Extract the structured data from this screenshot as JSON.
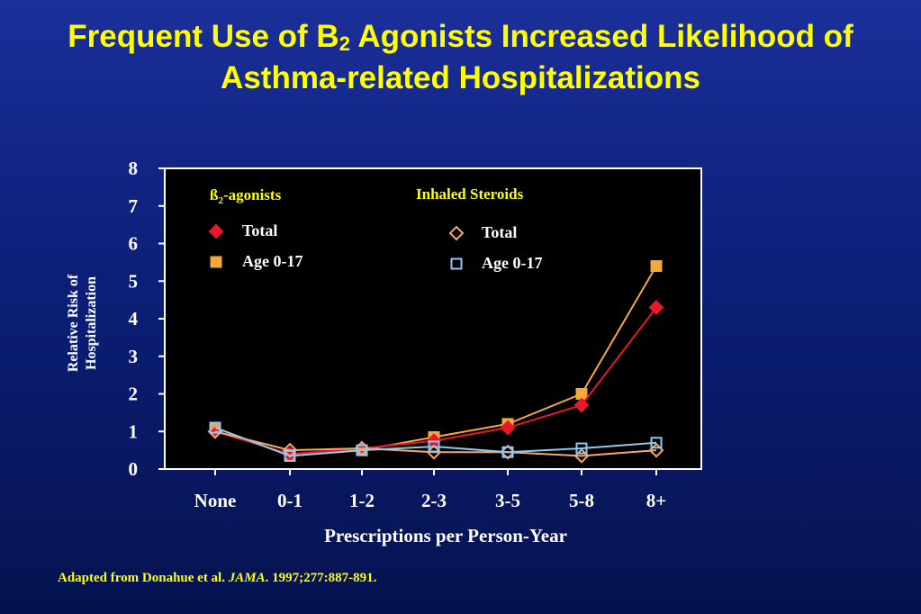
{
  "slide": {
    "title_part1": "Frequent Use of B",
    "title_sub": "2",
    "title_part2": " Agonists Increased Likelihood of",
    "title_line2": "Asthma-related Hospitalizations",
    "citation_pre": "Adapted from Donahue et al. ",
    "citation_journal": "JAMA",
    "citation_post": ". 1997;277:887-891."
  },
  "colors": {
    "title": "#ffff00",
    "plot_bg": "#000000",
    "beta_total": "#e8182c",
    "beta_child": "#f5a93a",
    "steroid_total": "#f5a86a",
    "steroid_child": "#8fc8f0",
    "text": "#ffffff"
  },
  "chart_data": {
    "type": "line",
    "xlabel": "Prescriptions per Person-Year",
    "ylabel_line1": "Relative Risk of",
    "ylabel_line2": "Hospitalization",
    "categories": [
      "None",
      "0-1",
      "1-2",
      "2-3",
      "3-5",
      "5-8",
      "8+"
    ],
    "ylim": [
      0,
      8
    ],
    "yticks": [
      "0",
      "1",
      "2",
      "3",
      "4",
      "5",
      "6",
      "7",
      "8"
    ],
    "legend_groups": [
      {
        "title_main": "ß",
        "title_sub": "2",
        "title_rest": "-agonists"
      },
      {
        "title_main": "Inhaled Steroids",
        "title_sub": "",
        "title_rest": ""
      }
    ],
    "series": [
      {
        "group": 0,
        "name": "Total",
        "marker": "diamond-filled",
        "values": [
          1.0,
          0.4,
          0.55,
          0.75,
          1.1,
          1.7,
          4.3
        ]
      },
      {
        "group": 0,
        "name": "Age 0-17",
        "marker": "square-filled",
        "values": [
          1.1,
          0.35,
          0.5,
          0.85,
          1.2,
          2.0,
          5.4
        ]
      },
      {
        "group": 1,
        "name": "Total",
        "marker": "diamond-open",
        "values": [
          1.0,
          0.5,
          0.55,
          0.45,
          0.45,
          0.35,
          0.5
        ]
      },
      {
        "group": 1,
        "name": "Age 0-17",
        "marker": "square-open",
        "values": [
          1.1,
          0.35,
          0.5,
          0.6,
          0.45,
          0.55,
          0.7
        ]
      }
    ]
  }
}
